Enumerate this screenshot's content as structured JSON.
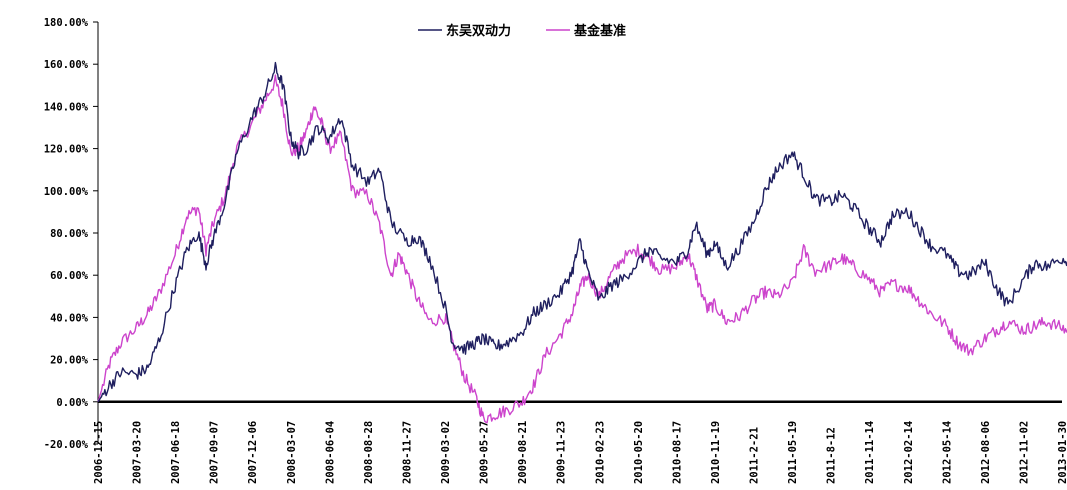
{
  "chart_data": {
    "type": "line",
    "ylim": [
      -20,
      180
    ],
    "y_ticks": [
      {
        "value": 180,
        "label": "180.00%"
      },
      {
        "value": 160,
        "label": "160.00%"
      },
      {
        "value": 140,
        "label": "140.00%"
      },
      {
        "value": 120,
        "label": "120.00%"
      },
      {
        "value": 100,
        "label": "100.00%"
      },
      {
        "value": 80,
        "label": "80.00%"
      },
      {
        "value": 60,
        "label": "60.00%"
      },
      {
        "value": 40,
        "label": "40.00%"
      },
      {
        "value": 20,
        "label": "20.00%"
      },
      {
        "value": 0,
        "label": "0.00%"
      },
      {
        "value": -20,
        "label": "-20.00%"
      }
    ],
    "x_tick_labels": [
      "2006-12-15",
      "2007-03-20",
      "2007-06-18",
      "2007-09-07",
      "2007-12-06",
      "2008-03-07",
      "2008-06-04",
      "2008-08-28",
      "2008-11-27",
      "2009-03-02",
      "2009-05-27",
      "2009-08-21",
      "2009-11-23",
      "2010-02-23",
      "2010-05-20",
      "2010-08-17",
      "2010-11-19",
      "2011-2-21",
      "2011-05-19",
      "2011-8-12",
      "2011-11-14",
      "2012-02-14",
      "2012-05-14",
      "2012-08-06",
      "2012-11-02",
      "2013-01-30"
    ],
    "grid": false,
    "legend_position": "top-center",
    "series": [
      {
        "name": "东吴双动力",
        "color": "#1f1f5f",
        "points": [
          [
            0,
            0
          ],
          [
            0.3,
            8
          ],
          [
            0.6,
            14
          ],
          [
            1,
            13
          ],
          [
            1.3,
            16
          ],
          [
            1.6,
            30
          ],
          [
            2,
            55
          ],
          [
            2.3,
            72
          ],
          [
            2.6,
            80
          ],
          [
            2.8,
            65
          ],
          [
            3,
            78
          ],
          [
            3.3,
            95
          ],
          [
            3.6,
            118
          ],
          [
            4,
            135
          ],
          [
            4.3,
            145
          ],
          [
            4.6,
            158
          ],
          [
            4.8,
            150
          ],
          [
            5,
            125
          ],
          [
            5.2,
            118
          ],
          [
            5.4,
            120
          ],
          [
            5.7,
            130
          ],
          [
            6,
            125
          ],
          [
            6.3,
            135
          ],
          [
            6.6,
            112
          ],
          [
            7,
            104
          ],
          [
            7.3,
            110
          ],
          [
            7.6,
            85
          ],
          [
            8,
            76
          ],
          [
            8.3,
            78
          ],
          [
            8.6,
            68
          ],
          [
            9,
            45
          ],
          [
            9.2,
            28
          ],
          [
            9.5,
            25
          ],
          [
            9.8,
            28
          ],
          [
            10,
            30
          ],
          [
            10.3,
            26
          ],
          [
            10.6,
            28
          ],
          [
            11,
            33
          ],
          [
            11.3,
            42
          ],
          [
            11.6,
            46
          ],
          [
            12,
            52
          ],
          [
            12.3,
            62
          ],
          [
            12.5,
            76
          ],
          [
            12.7,
            62
          ],
          [
            13,
            48
          ],
          [
            13.3,
            55
          ],
          [
            13.6,
            58
          ],
          [
            14,
            66
          ],
          [
            14.3,
            72
          ],
          [
            14.6,
            68
          ],
          [
            15,
            66
          ],
          [
            15.3,
            72
          ],
          [
            15.5,
            84
          ],
          [
            15.8,
            70
          ],
          [
            16,
            75
          ],
          [
            16.3,
            64
          ],
          [
            16.6,
            72
          ],
          [
            17,
            85
          ],
          [
            17.3,
            100
          ],
          [
            17.6,
            110
          ],
          [
            18,
            118
          ],
          [
            18.3,
            108
          ],
          [
            18.6,
            96
          ],
          [
            19,
            95
          ],
          [
            19.3,
            98
          ],
          [
            19.6,
            92
          ],
          [
            20,
            82
          ],
          [
            20.3,
            76
          ],
          [
            20.6,
            88
          ],
          [
            21,
            90
          ],
          [
            21.3,
            82
          ],
          [
            21.6,
            74
          ],
          [
            22,
            70
          ],
          [
            22.3,
            62
          ],
          [
            22.6,
            60
          ],
          [
            23,
            66
          ],
          [
            23.3,
            54
          ],
          [
            23.6,
            46
          ],
          [
            24,
            58
          ],
          [
            24.3,
            66
          ],
          [
            24.6,
            64
          ],
          [
            25,
            68
          ],
          [
            25.3,
            66
          ],
          [
            25.6,
            62
          ],
          [
            26,
            64
          ],
          [
            26.3,
            62
          ],
          [
            26.6,
            60
          ],
          [
            27,
            64
          ],
          [
            27.3,
            60
          ],
          [
            27.6,
            52
          ],
          [
            28,
            46
          ],
          [
            28.3,
            58
          ],
          [
            28.6,
            62
          ],
          [
            29,
            76
          ],
          [
            29.3,
            82
          ],
          [
            29.55,
            80
          ]
        ]
      },
      {
        "name": "基金基准",
        "color": "#cc44cc",
        "points": [
          [
            0,
            0
          ],
          [
            0.3,
            18
          ],
          [
            0.6,
            28
          ],
          [
            1,
            35
          ],
          [
            1.3,
            42
          ],
          [
            1.6,
            52
          ],
          [
            2,
            70
          ],
          [
            2.3,
            88
          ],
          [
            2.6,
            92
          ],
          [
            2.8,
            72
          ],
          [
            3,
            85
          ],
          [
            3.3,
            98
          ],
          [
            3.6,
            120
          ],
          [
            4,
            132
          ],
          [
            4.3,
            142
          ],
          [
            4.6,
            152
          ],
          [
            4.8,
            140
          ],
          [
            5,
            118
          ],
          [
            5.2,
            120
          ],
          [
            5.4,
            128
          ],
          [
            5.6,
            140
          ],
          [
            5.8,
            132
          ],
          [
            6,
            120
          ],
          [
            6.3,
            126
          ],
          [
            6.6,
            100
          ],
          [
            7,
            98
          ],
          [
            7.3,
            84
          ],
          [
            7.6,
            60
          ],
          [
            7.8,
            70
          ],
          [
            8,
            62
          ],
          [
            8.3,
            48
          ],
          [
            8.6,
            38
          ],
          [
            9,
            40
          ],
          [
            9.2,
            28
          ],
          [
            9.5,
            12
          ],
          [
            9.8,
            2
          ],
          [
            10,
            -8
          ],
          [
            10.3,
            -6
          ],
          [
            10.6,
            -4
          ],
          [
            11,
            0
          ],
          [
            11.3,
            8
          ],
          [
            11.6,
            22
          ],
          [
            12,
            32
          ],
          [
            12.3,
            42
          ],
          [
            12.5,
            54
          ],
          [
            12.7,
            60
          ],
          [
            13,
            50
          ],
          [
            13.3,
            60
          ],
          [
            13.6,
            68
          ],
          [
            14,
            72
          ],
          [
            14.3,
            68
          ],
          [
            14.6,
            62
          ],
          [
            15,
            64
          ],
          [
            15.3,
            70
          ],
          [
            15.5,
            60
          ],
          [
            15.8,
            44
          ],
          [
            16,
            46
          ],
          [
            16.3,
            38
          ],
          [
            16.6,
            40
          ],
          [
            17,
            48
          ],
          [
            17.3,
            52
          ],
          [
            17.6,
            50
          ],
          [
            18,
            56
          ],
          [
            18.3,
            72
          ],
          [
            18.6,
            62
          ],
          [
            19,
            65
          ],
          [
            19.3,
            68
          ],
          [
            19.6,
            64
          ],
          [
            20,
            58
          ],
          [
            20.3,
            52
          ],
          [
            20.6,
            56
          ],
          [
            21,
            54
          ],
          [
            21.3,
            48
          ],
          [
            21.6,
            42
          ],
          [
            22,
            36
          ],
          [
            22.3,
            28
          ],
          [
            22.6,
            24
          ],
          [
            23,
            30
          ],
          [
            23.3,
            34
          ],
          [
            23.6,
            38
          ],
          [
            24,
            34
          ],
          [
            24.3,
            36
          ],
          [
            24.6,
            38
          ],
          [
            25,
            35
          ],
          [
            25.3,
            32
          ],
          [
            25.6,
            28
          ],
          [
            26,
            26
          ],
          [
            26.3,
            22
          ],
          [
            26.6,
            26
          ],
          [
            27,
            22
          ],
          [
            27.3,
            26
          ],
          [
            27.6,
            22
          ],
          [
            28,
            18
          ],
          [
            28.3,
            26
          ],
          [
            28.6,
            32
          ],
          [
            29,
            38
          ],
          [
            29.3,
            42
          ],
          [
            29.55,
            38
          ]
        ]
      }
    ]
  }
}
